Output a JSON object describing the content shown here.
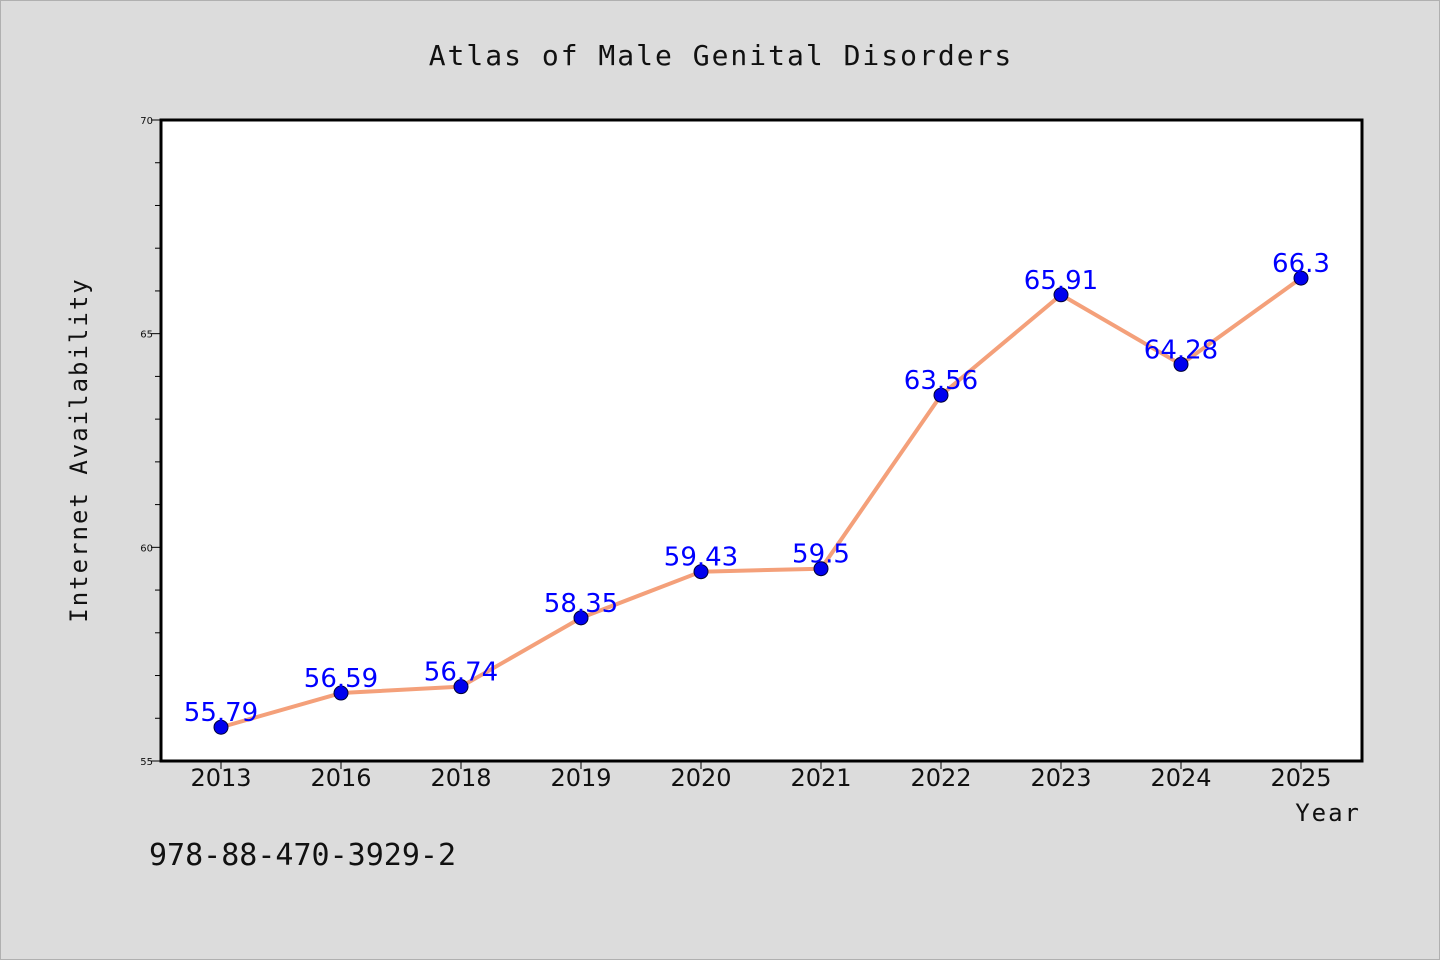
{
  "chart_data": {
    "type": "line",
    "title": "Atlas of Male Genital Disorders",
    "xlabel": "Year",
    "ylabel": "Internet Availability",
    "categories": [
      "2013",
      "2016",
      "2018",
      "2019",
      "2020",
      "2021",
      "2022",
      "2023",
      "2024",
      "2025"
    ],
    "series": [
      {
        "values": [
          55.79,
          56.59,
          56.74,
          58.35,
          59.43,
          59.5,
          63.56,
          65.91,
          64.28,
          66.3
        ],
        "data_labels": [
          "55.79",
          "56.59",
          "56.74",
          "58.35",
          "59.43",
          "59.5",
          "63.56",
          "65.91",
          "64.28",
          "66.3"
        ],
        "line_color": "#f4a07a",
        "marker_color": "#0000ee"
      }
    ],
    "ylim": [
      55,
      70
    ],
    "yticks": [
      55,
      60,
      65,
      70
    ],
    "ytick_labels": [
      "55",
      "60",
      "65",
      "70"
    ],
    "grid": false,
    "legend": "none"
  },
  "footer": {
    "isbn": "978-88-470-3929-2"
  },
  "colors": {
    "background": "#dcdcdc",
    "plot_background": "#ffffff",
    "label_color": "#0000ff"
  }
}
